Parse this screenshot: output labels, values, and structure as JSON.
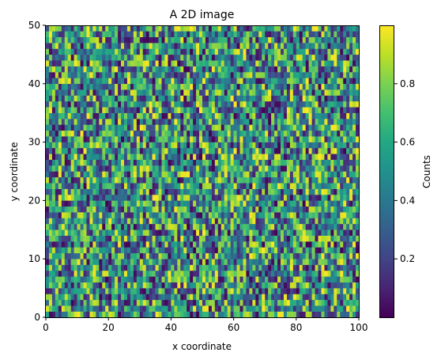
{
  "chart_data": {
    "type": "heatmap",
    "title": "A 2D image",
    "xlabel": "x coordinate",
    "ylabel": "y coordinate",
    "colorbar_label": "Counts",
    "colormap": "viridis",
    "xlim": [
      0,
      100
    ],
    "ylim": [
      0,
      50
    ],
    "x_ticks": [
      0,
      20,
      40,
      60,
      80,
      100
    ],
    "y_ticks": [
      0,
      10,
      20,
      30,
      40,
      50
    ],
    "colorbar_range": [
      0,
      1
    ],
    "colorbar_ticks": [
      0.2,
      0.4,
      0.6,
      0.8
    ],
    "grid": {
      "columns": 100,
      "rows": 50,
      "cell_values": "uniform random in [0, 1)"
    }
  }
}
